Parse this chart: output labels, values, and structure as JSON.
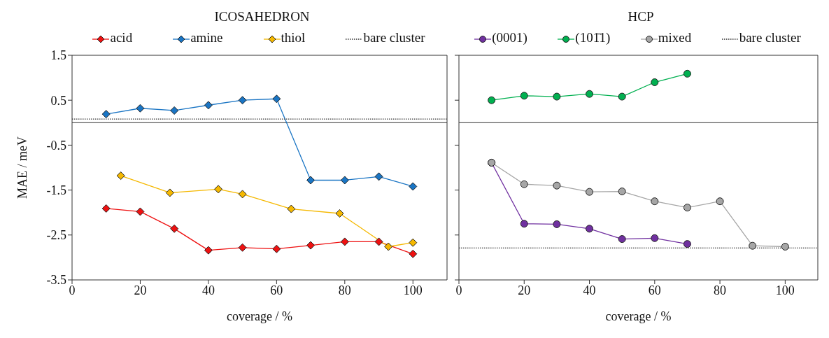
{
  "chart_data": [
    {
      "type": "line",
      "title": "ICOSAHEDRON",
      "xlabel": "coverage / %",
      "ylabel": "MAE / meV",
      "x": [
        10,
        20,
        30,
        40,
        50,
        60,
        70,
        80,
        90,
        100
      ],
      "series": [
        {
          "name": "acid",
          "color": "#ee1111",
          "values": [
            -1.91,
            -1.98,
            -2.36,
            -2.84,
            -2.78,
            -2.81,
            -2.73,
            -2.65,
            -2.65,
            -2.92
          ]
        },
        {
          "name": "amine",
          "color": "#1a75c4",
          "values": [
            0.19,
            0.32,
            0.27,
            0.39,
            0.5,
            0.53,
            -1.28,
            -1.28,
            -1.2,
            -1.42
          ]
        },
        {
          "name": "thiol",
          "color": "#f5b800",
          "x": [
            14.3,
            28.7,
            42.9,
            50,
            64.3,
            78.5,
            92.8,
            100
          ],
          "values": [
            -1.18,
            -1.56,
            -1.48,
            -1.59,
            -1.92,
            -2.02,
            -2.76,
            -2.67
          ]
        },
        {
          "name": "bare cluster",
          "color": "#333333",
          "x": [
            0,
            110
          ],
          "values": [
            0.08,
            0.08
          ],
          "marker": "none",
          "line_style": "dotted"
        }
      ],
      "xlim": [
        0,
        110
      ],
      "xticks": [
        0,
        20,
        40,
        60,
        80,
        100
      ],
      "ylim": [
        -3.5,
        1.5
      ],
      "yticks": [
        1.5,
        0.5,
        -0.5,
        -1.5,
        -2.5,
        -3.5
      ],
      "ref_lines": [
        {
          "axis": "y",
          "value": 0,
          "color": "#333333",
          "line_style": "solid"
        }
      ],
      "marker": "diamond",
      "legend": "top",
      "grid": false
    },
    {
      "type": "line",
      "title": "HCP",
      "xlabel": "coverage / %",
      "x": [
        10,
        20,
        30,
        40,
        50,
        60,
        70,
        80,
        90,
        100
      ],
      "series": [
        {
          "name": "(0001)",
          "color": "#7030a0",
          "x": [
            10,
            20,
            30,
            40,
            50,
            60,
            70
          ],
          "values": [
            -0.89,
            -2.25,
            -2.26,
            -2.36,
            -2.59,
            -2.57,
            -2.7
          ]
        },
        {
          "name": "(101̄1)",
          "color": "#00b050",
          "x": [
            10,
            20,
            30,
            40,
            50,
            60,
            70
          ],
          "values": [
            0.5,
            0.6,
            0.58,
            0.64,
            0.58,
            0.9,
            1.09
          ]
        },
        {
          "name": "mixed",
          "color": "#a6a6a6",
          "values": [
            -0.89,
            -1.37,
            -1.4,
            -1.54,
            -1.53,
            -1.75,
            -1.89,
            -1.75,
            -2.74,
            -2.76
          ]
        },
        {
          "name": "bare cluster",
          "color": "#333333",
          "x": [
            0,
            110
          ],
          "values": [
            -2.79,
            -2.79
          ],
          "marker": "none",
          "line_style": "dotted"
        }
      ],
      "xlim": [
        0,
        110
      ],
      "xticks": [
        0,
        20,
        40,
        60,
        80,
        100
      ],
      "ylim": [
        -3.5,
        1.5
      ],
      "yticks": [
        1.5,
        0.5,
        -0.5,
        -1.5,
        -2.5,
        -3.5
      ],
      "ref_lines": [
        {
          "axis": "y",
          "value": 0,
          "color": "#333333",
          "line_style": "solid"
        }
      ],
      "marker": "circle",
      "legend": "top",
      "grid": false,
      "tick_labels": "x"
    }
  ]
}
